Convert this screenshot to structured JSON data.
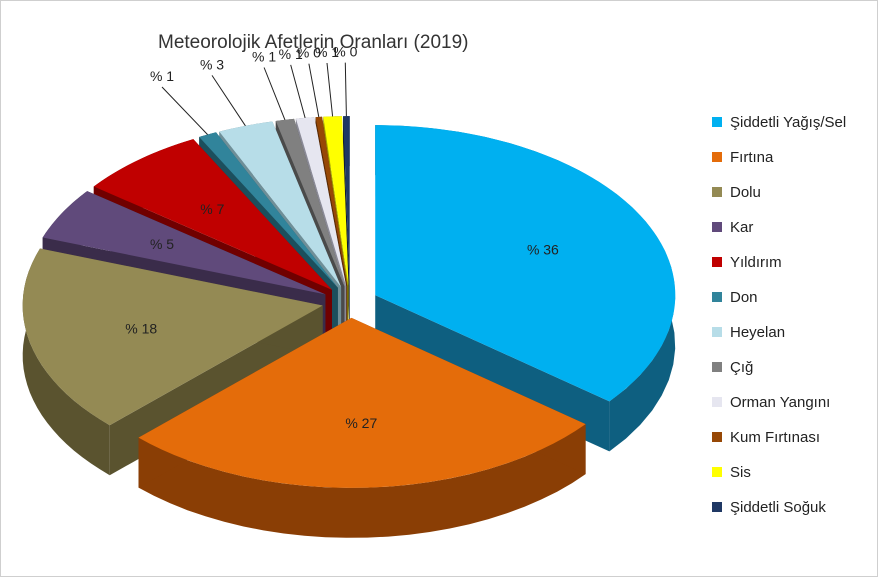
{
  "chart_data": {
    "type": "pie",
    "title": "Meteorolojik Afetlerin Oranları (2019)",
    "value_format": "% {v}",
    "series": [
      {
        "name": "Şiddetli Yağış/Sel",
        "value": 36,
        "color": "#00B0F0",
        "side": "#0E5F80",
        "offset": 1
      },
      {
        "name": "Fırtına",
        "value": 27,
        "color": "#E46C0A",
        "side": "#8A3E05",
        "offset": 1
      },
      {
        "name": "Dolu",
        "value": 18,
        "color": "#948A54",
        "side": "#5A532F",
        "offset": 1
      },
      {
        "name": "Kar",
        "value": 5,
        "color": "#604A7B",
        "side": "#3A2C4A",
        "offset": 1
      },
      {
        "name": "Yıldırım",
        "value": 7,
        "color": "#C00000",
        "side": "#700000",
        "offset": 1
      },
      {
        "name": "Don",
        "value": 1,
        "color": "#31849B",
        "side": "#1C4F5D",
        "offset": 1
      },
      {
        "name": "Heyelan",
        "value": 3,
        "color": "#B7DDE8",
        "side": "#6F8F98",
        "offset": 1
      },
      {
        "name": "Çığ",
        "value": 1,
        "color": "#808080",
        "side": "#4A4A4A",
        "offset": 1
      },
      {
        "name": "Orman Yangını",
        "value": 1,
        "color": "#E6E6F0",
        "side": "#8A8A96",
        "offset": 1
      },
      {
        "name": "Kum Fırtınası",
        "value": 0,
        "color": "#974806",
        "side": "#5A2A03",
        "offset": 1
      },
      {
        "name": "Sis",
        "value": 1,
        "color": "#FFFF00",
        "side": "#A0A000",
        "offset": 1
      },
      {
        "name": "Şiddetli Soğuk",
        "value": 0,
        "color": "#1F3864",
        "side": "#0F1C32",
        "offset": 1
      }
    ],
    "legend": "right"
  }
}
